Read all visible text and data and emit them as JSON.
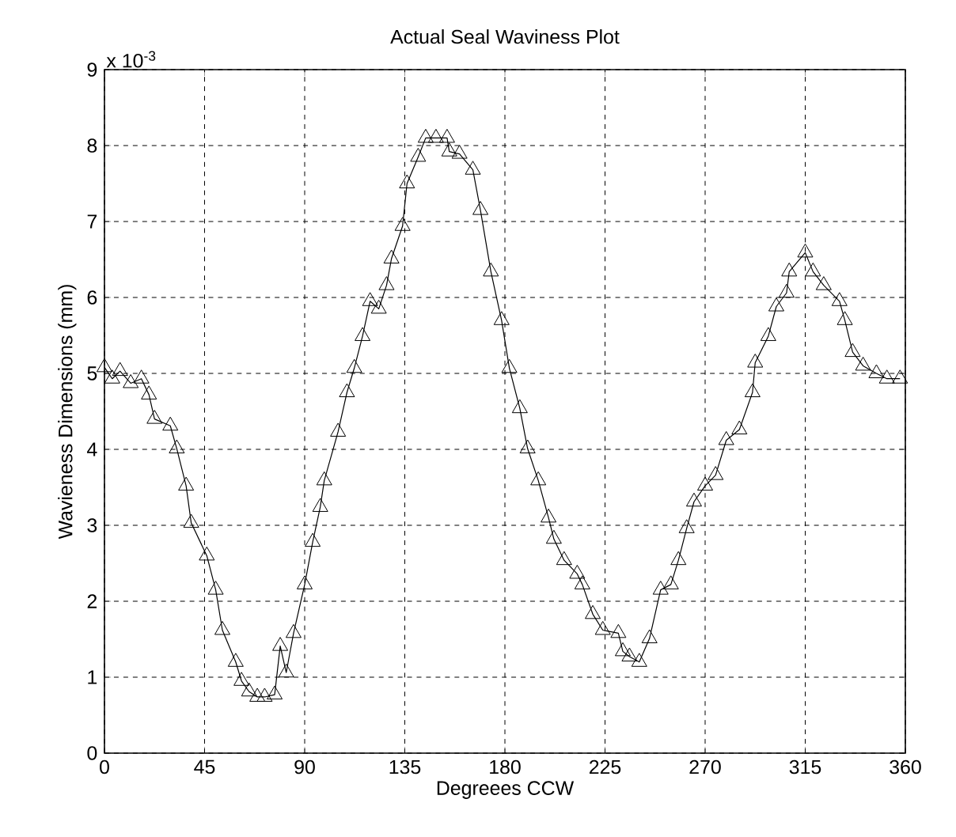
{
  "chart_data": {
    "type": "line",
    "title": "Actual Seal Waviness Plot",
    "xlabel": "Degreees CCW",
    "ylabel": "Wavieness Dimensions (mm)",
    "annotations": [
      "x 10$^{-3}$"
    ],
    "xlim": [
      0,
      360
    ],
    "xticks": [
      0,
      45,
      90,
      135,
      180,
      225,
      270,
      315,
      360
    ],
    "ylim": [
      0,
      9
    ],
    "yticks": [
      0,
      1,
      2,
      3,
      4,
      5,
      6,
      7,
      8,
      9
    ],
    "grid": true,
    "marker": "triangle",
    "line_style": "solid",
    "series": [
      {
        "color": "#000000",
        "x": [
          0,
          3.5,
          7,
          11.8,
          16.6,
          20,
          22.5,
          29.6,
          32.5,
          36.7,
          39,
          46,
          50,
          53,
          59,
          61.6,
          65,
          68.7,
          72,
          76.5,
          79,
          81.7,
          85,
          90,
          93.6,
          97,
          98.8,
          105,
          109,
          112.3,
          116,
          119.4,
          123.3,
          126.8,
          129,
          134,
          136,
          141,
          144.4,
          149,
          154,
          155,
          159.6,
          165.6,
          169,
          173.7,
          178.5,
          182,
          186.7,
          190.2,
          195,
          199.6,
          202,
          206.6,
          212.5,
          214.8,
          219.5,
          224,
          231,
          233,
          236,
          240.4,
          245,
          250,
          254.6,
          258,
          261.7,
          265,
          270,
          274.7,
          279.5,
          285.4,
          291.3,
          292.5,
          298.4,
          302,
          306.6,
          307.8,
          315,
          318.5,
          323.3,
          330.4,
          332.8,
          336.3,
          341,
          347,
          351.7,
          357.6
        ],
        "values": [
          5.08,
          4.93,
          5.03,
          4.87,
          4.93,
          4.72,
          4.4,
          4.31,
          4.01,
          3.52,
          3.03,
          2.6,
          2.15,
          1.62,
          1.2,
          0.95,
          0.81,
          0.74,
          0.74,
          0.77,
          1.41,
          1.06,
          1.58,
          2.22,
          2.78,
          3.24,
          3.59,
          4.23,
          4.75,
          5.07,
          5.49,
          5.95,
          5.85,
          6.16,
          6.51,
          6.94,
          7.5,
          7.85,
          8.1,
          8.1,
          8.1,
          7.92,
          7.89,
          7.68,
          7.15,
          6.34,
          5.7,
          5.07,
          4.54,
          4.01,
          3.59,
          3.1,
          2.82,
          2.54,
          2.36,
          2.22,
          1.83,
          1.62,
          1.58,
          1.34,
          1.27,
          1.2,
          1.51,
          2.15,
          2.22,
          2.54,
          2.96,
          3.31,
          3.52,
          3.66,
          4.12,
          4.26,
          4.75,
          5.14,
          5.49,
          5.88,
          6.06,
          6.34,
          6.59,
          6.34,
          6.16,
          5.95,
          5.7,
          5.28,
          5.1,
          5.0,
          4.93,
          4.93
        ]
      }
    ]
  }
}
